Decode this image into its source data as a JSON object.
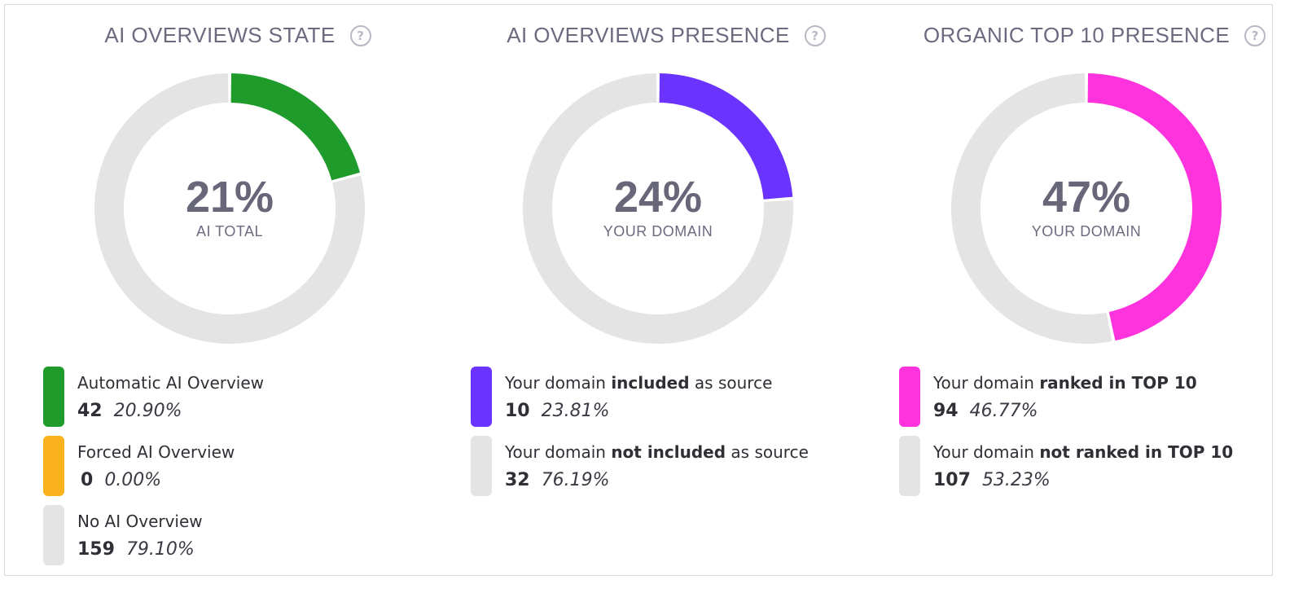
{
  "chart_data": [
    {
      "type": "pie",
      "title": "AI OVERVIEWS STATE",
      "center_value": "21%",
      "center_label": "AI TOTAL",
      "series": [
        {
          "name": "Automatic AI Overview",
          "label_plain": "Automatic AI Overview",
          "count": "42",
          "percent_text": "20.90%",
          "value": 20.9,
          "color": "#1e9b2b"
        },
        {
          "name": "Forced AI Overview",
          "label_plain": "Forced AI Overview",
          "count": "0",
          "percent_text": "0.00%",
          "value": 0.0,
          "color": "#fbb21c"
        },
        {
          "name": "No AI Overview",
          "label_plain": "No AI Overview",
          "count": "159",
          "percent_text": "79.10%",
          "value": 79.1,
          "color": "#e4e4e4"
        }
      ]
    },
    {
      "type": "pie",
      "title": "AI OVERVIEWS PRESENCE",
      "center_value": "24%",
      "center_label": "YOUR DOMAIN",
      "series": [
        {
          "name": "Your domain included as source",
          "label_pre": "Your domain ",
          "label_bold": "included",
          "label_post": " as source",
          "count": "10",
          "percent_text": "23.81%",
          "value": 23.81,
          "color": "#6b33ff"
        },
        {
          "name": "Your domain not included as source",
          "label_pre": "Your domain ",
          "label_bold": "not included",
          "label_post": " as source",
          "count": "32",
          "percent_text": "76.19%",
          "value": 76.19,
          "color": "#e4e4e4"
        }
      ]
    },
    {
      "type": "pie",
      "title": "ORGANIC TOP 10 PRESENCE",
      "center_value": "47%",
      "center_label": "YOUR DOMAIN",
      "series": [
        {
          "name": "Your domain ranked in TOP 10",
          "label_pre": "Your domain ",
          "label_bold": "ranked in TOP 10",
          "label_post": "",
          "count": "94",
          "percent_text": "46.77%",
          "value": 46.77,
          "color": "#ff33dd"
        },
        {
          "name": "Your domain not ranked in TOP 10",
          "label_pre": "Your domain ",
          "label_bold": "not ranked in TOP 10",
          "label_post": "",
          "count": "107",
          "percent_text": "53.23%",
          "value": 53.23,
          "color": "#e4e4e4"
        }
      ]
    }
  ],
  "help_icon_glyph": "?",
  "icons": {
    "help": "question-circle-icon"
  }
}
